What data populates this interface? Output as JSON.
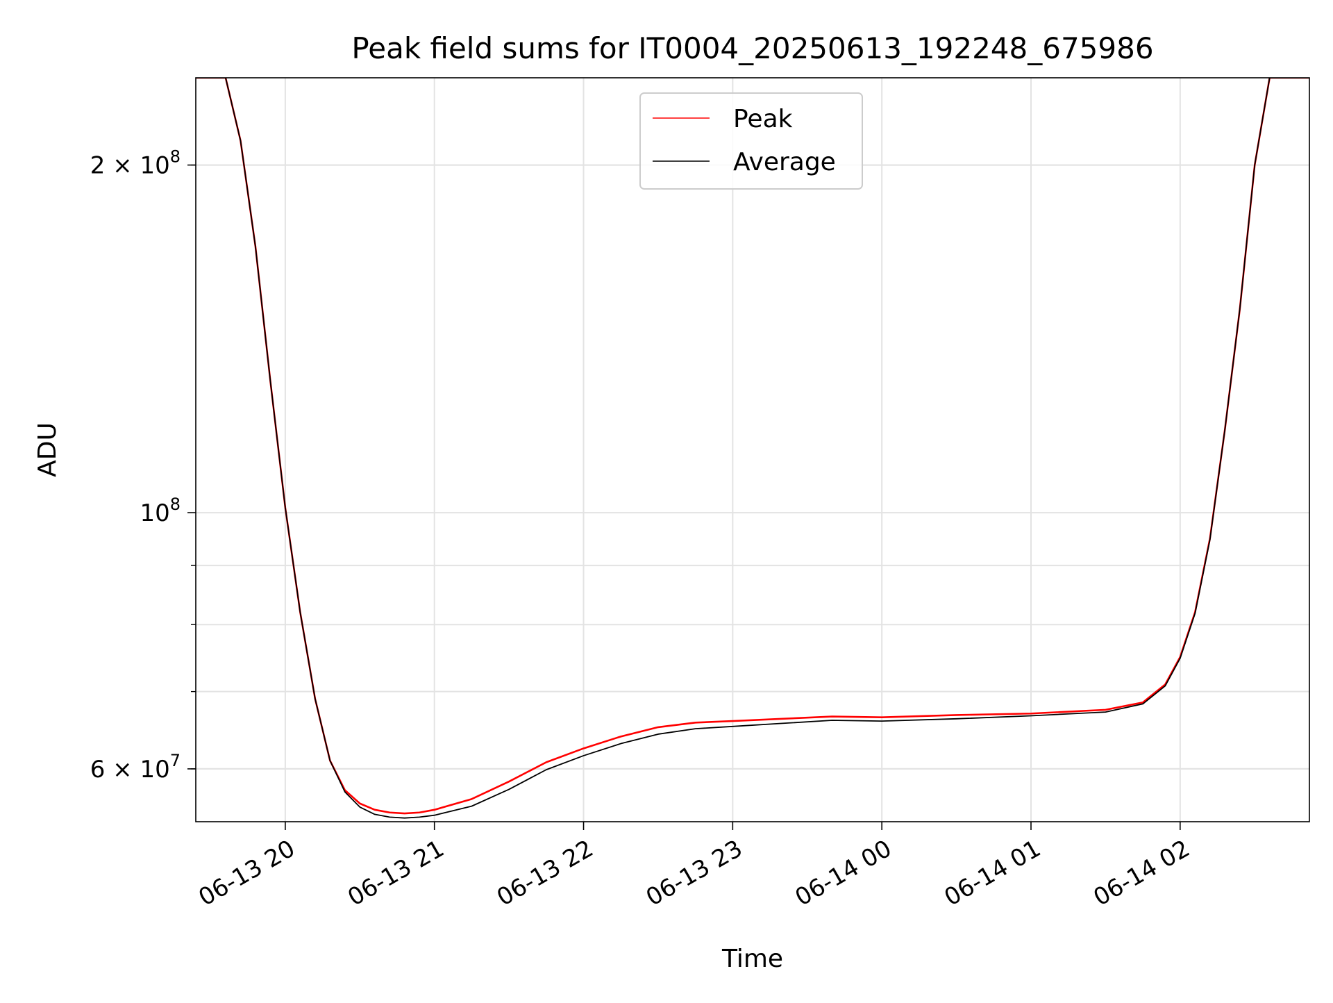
{
  "chart_data": {
    "type": "line",
    "title": "Peak field sums for IT0004_20250613_192248_675986",
    "xlabel": "Time",
    "ylabel": "ADU",
    "yscale": "log",
    "grid": true,
    "legend_position": "top-center",
    "xlim": [
      "2025-06-13 19:24",
      "2025-06-14 02:52"
    ],
    "ylim": [
      54000000,
      238000000
    ],
    "x_ticks": [
      {
        "value": "2025-06-13 20:00",
        "label": "06-13 20"
      },
      {
        "value": "2025-06-13 21:00",
        "label": "06-13 21"
      },
      {
        "value": "2025-06-13 22:00",
        "label": "06-13 22"
      },
      {
        "value": "2025-06-13 23:00",
        "label": "06-13 23"
      },
      {
        "value": "2025-06-14 00:00",
        "label": "06-14 00"
      },
      {
        "value": "2025-06-14 01:00",
        "label": "06-14 01"
      },
      {
        "value": "2025-06-14 02:00",
        "label": "06-14 02"
      }
    ],
    "y_major_ticks": [
      {
        "value": 60000000,
        "base": "6 × 10",
        "exp": "7"
      },
      {
        "value": 100000000,
        "base": "10",
        "exp": "8"
      },
      {
        "value": 200000000,
        "base": "2 × 10",
        "exp": "8"
      }
    ],
    "y_minor_ticks": [
      60000000,
      70000000,
      80000000,
      90000000,
      200000000
    ],
    "series": [
      {
        "name": "Peak",
        "color": "#ff0000",
        "x": [
          "2025-06-13 19:24",
          "2025-06-13 19:30",
          "2025-06-13 19:36",
          "2025-06-13 19:42",
          "2025-06-13 19:48",
          "2025-06-13 19:54",
          "2025-06-13 20:00",
          "2025-06-13 20:06",
          "2025-06-13 20:12",
          "2025-06-13 20:18",
          "2025-06-13 20:24",
          "2025-06-13 20:30",
          "2025-06-13 20:36",
          "2025-06-13 20:42",
          "2025-06-13 20:48",
          "2025-06-13 20:54",
          "2025-06-13 21:00",
          "2025-06-13 21:15",
          "2025-06-13 21:30",
          "2025-06-13 21:45",
          "2025-06-13 22:00",
          "2025-06-13 22:15",
          "2025-06-13 22:30",
          "2025-06-13 22:45",
          "2025-06-13 23:00",
          "2025-06-13 23:20",
          "2025-06-13 23:40",
          "2025-06-14 00:00",
          "2025-06-14 00:30",
          "2025-06-14 01:00",
          "2025-06-14 01:30",
          "2025-06-14 01:45",
          "2025-06-14 01:54",
          "2025-06-14 02:00",
          "2025-06-14 02:06",
          "2025-06-14 02:12",
          "2025-06-14 02:18",
          "2025-06-14 02:24",
          "2025-06-14 02:30",
          "2025-06-14 02:36",
          "2025-06-14 02:52"
        ],
        "values": [
          240000000,
          240000000,
          240000000,
          210000000,
          170000000,
          130000000,
          101000000,
          82000000,
          69000000,
          61000000,
          57500000,
          56000000,
          55300000,
          55000000,
          54900000,
          55000000,
          55300000,
          56500000,
          58500000,
          60800000,
          62500000,
          64000000,
          65200000,
          65800000,
          66000000,
          66300000,
          66600000,
          66500000,
          66800000,
          67000000,
          67500000,
          68500000,
          71000000,
          75000000,
          82000000,
          95000000,
          118000000,
          150000000,
          200000000,
          240000000,
          240000000
        ]
      },
      {
        "name": "Average",
        "color": "#000000",
        "x": [
          "2025-06-13 19:24",
          "2025-06-13 19:30",
          "2025-06-13 19:36",
          "2025-06-13 19:42",
          "2025-06-13 19:48",
          "2025-06-13 19:54",
          "2025-06-13 20:00",
          "2025-06-13 20:06",
          "2025-06-13 20:12",
          "2025-06-13 20:18",
          "2025-06-13 20:24",
          "2025-06-13 20:30",
          "2025-06-13 20:36",
          "2025-06-13 20:42",
          "2025-06-13 20:48",
          "2025-06-13 20:54",
          "2025-06-13 21:00",
          "2025-06-13 21:15",
          "2025-06-13 21:30",
          "2025-06-13 21:45",
          "2025-06-13 22:00",
          "2025-06-13 22:15",
          "2025-06-13 22:30",
          "2025-06-13 22:45",
          "2025-06-13 23:00",
          "2025-06-13 23:20",
          "2025-06-13 23:40",
          "2025-06-14 00:00",
          "2025-06-14 00:30",
          "2025-06-14 01:00",
          "2025-06-14 01:30",
          "2025-06-14 01:45",
          "2025-06-14 01:54",
          "2025-06-14 02:00",
          "2025-06-14 02:06",
          "2025-06-14 02:12",
          "2025-06-14 02:18",
          "2025-06-14 02:24",
          "2025-06-14 02:30",
          "2025-06-14 02:36",
          "2025-06-14 02:52"
        ],
        "values": [
          240000000,
          240000000,
          240000000,
          210000000,
          170000000,
          130000000,
          101000000,
          82000000,
          69000000,
          61000000,
          57300000,
          55600000,
          54800000,
          54500000,
          54400000,
          54500000,
          54700000,
          55700000,
          57600000,
          59900000,
          61600000,
          63100000,
          64300000,
          65000000,
          65300000,
          65700000,
          66100000,
          66000000,
          66300000,
          66700000,
          67200000,
          68300000,
          70800000,
          74800000,
          81800000,
          94800000,
          118000000,
          150000000,
          200000000,
          240000000,
          240000000
        ]
      }
    ]
  }
}
